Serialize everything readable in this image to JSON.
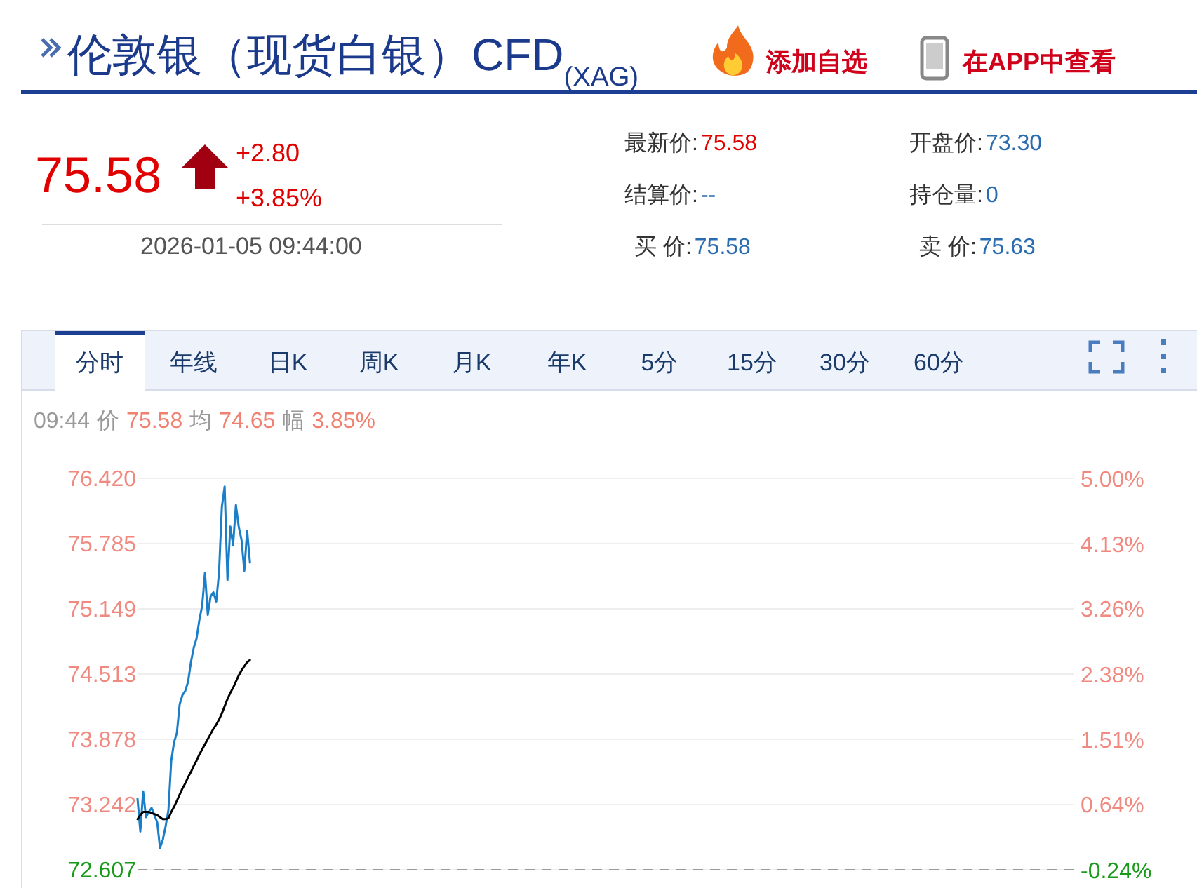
{
  "chart_data": {
    "type": "line",
    "title": "伦敦银（现货白银）CFD$_{(XAG)}$",
    "annotations": [
      "添加自选",
      "在APP中查看",
      "75.58",
      "+2.80",
      "+3.85%",
      "2026-01-05 09:44:00",
      "最新价:",
      "75.58",
      "开盘价:",
      "73.30",
      "结算价:",
      "--",
      "持仓量:",
      "0",
      "买  价:",
      "75.58",
      "卖  价:",
      "75.63",
      "分时",
      "年线",
      "日K",
      "周K",
      "月K",
      "年K",
      "5分",
      "15分",
      "30分",
      "60分",
      "09:44",
      "价",
      "75.58",
      "均",
      "74.65",
      "幅",
      "3.85%"
    ],
    "categories": [
      null,
      null,
      null,
      null,
      null,
      null,
      null,
      null,
      null,
      null,
      null,
      null,
      null,
      null,
      null,
      null,
      null,
      null,
      null,
      null,
      null,
      null,
      null,
      null,
      null,
      null,
      null,
      null,
      null,
      null,
      null,
      null,
      null,
      null,
      null,
      null,
      null,
      null,
      null,
      null,
      null,
      null,
      null,
      null,
      null,
      null,
      null,
      null,
      null,
      null,
      null,
      null,
      null,
      null,
      null,
      null,
      null,
      null,
      null,
      null,
      null,
      null,
      null,
      null,
      null,
      null,
      null,
      null,
      null,
      null,
      null,
      null,
      null,
      null,
      null,
      null,
      null,
      null,
      null,
      null,
      null,
      null,
      null,
      null,
      null,
      null,
      null,
      null,
      null,
      null,
      null,
      null,
      null,
      null,
      null,
      null,
      null,
      null,
      null,
      null,
      null,
      null,
      null,
      null,
      null,
      null,
      null,
      null,
      null,
      null,
      null,
      null,
      null,
      null,
      null,
      null,
      null,
      null,
      null,
      null,
      null,
      null,
      null,
      null,
      null,
      null,
      null,
      null,
      null,
      null,
      null,
      null,
      null,
      null,
      null,
      null,
      null,
      null,
      null,
      null,
      null,
      null,
      null,
      null,
      null,
      null,
      null,
      null,
      null,
      null,
      null,
      null,
      null,
      null,
      null,
      null,
      null,
      null,
      null,
      null,
      null,
      null,
      null,
      null,
      null,
      null,
      null,
      null,
      null,
      null,
      null,
      null,
      null,
      null,
      null,
      null,
      null,
      null,
      null,
      null,
      null,
      null,
      null,
      null,
      null,
      null,
      null,
      null,
      null,
      null,
      null,
      null,
      null,
      null,
      null,
      null,
      null,
      null,
      null,
      null,
      null,
      null,
      null,
      null,
      null,
      null,
      null,
      null,
      null,
      null,
      null,
      null,
      null,
      null,
      null,
      null,
      null,
      null,
      null,
      null,
      null,
      null,
      null,
      null,
      null,
      null,
      null,
      null,
      null,
      null,
      null,
      null,
      null,
      null,
      null,
      null,
      null,
      null,
      null,
      null,
      null,
      null,
      null,
      null,
      null,
      null,
      null,
      null,
      null,
      null,
      null,
      null,
      null,
      null,
      null,
      null,
      null,
      null,
      null,
      null,
      null,
      null,
      null,
      null,
      null,
      null,
      null,
      null,
      null,
      null,
      null,
      null,
      null,
      null,
      null,
      null,
      null,
      null,
      null,
      null,
      null,
      null,
      null,
      null,
      null,
      null,
      null,
      null,
      null,
      null,
      null,
      null,
      null,
      null,
      null,
      null,
      null,
      null,
      null,
      null,
      null,
      null,
      null,
      null,
      null,
      null,
      null,
      null,
      null,
      null,
      null,
      null,
      null,
      null,
      null,
      null,
      null,
      null,
      null,
      null,
      null,
      null,
      null,
      null,
      null,
      null,
      null,
      null,
      null,
      null,
      null,
      null,
      null,
      null
    ],
    "series": [
      {
        "color": "#1a7fc8",
        "values": [
          73.3,
          72.98,
          73.37,
          73.12,
          73.17,
          73.21,
          73.14,
          73.07,
          72.82,
          72.9,
          73.03,
          73.19,
          73.67,
          73.85,
          73.94,
          74.22,
          74.31,
          74.35,
          74.44,
          74.63,
          74.77,
          74.86,
          75.04,
          75.18,
          75.5,
          75.09,
          75.27,
          75.31,
          75.22,
          75.5,
          76.14,
          76.34,
          75.43,
          75.95,
          75.77,
          76.16,
          75.95,
          75.82,
          75.52,
          75.91,
          75.6,
          null,
          null,
          null,
          null,
          null,
          null,
          null,
          null,
          null,
          null,
          null,
          null,
          null,
          null,
          null,
          null,
          null,
          null,
          null,
          null,
          null,
          null,
          null,
          null,
          null,
          null,
          null,
          null,
          null,
          null,
          null,
          null,
          null,
          null,
          null,
          null,
          null,
          null,
          null,
          null,
          null,
          null,
          null,
          null,
          null,
          null,
          null,
          null,
          null,
          null,
          null,
          null,
          null,
          null,
          null,
          null,
          null,
          null,
          null,
          null,
          null,
          null,
          null,
          null,
          null,
          null,
          null,
          null,
          null,
          null,
          null,
          null,
          null,
          null,
          null,
          null,
          null,
          null,
          null,
          null,
          null,
          null,
          null,
          null,
          null,
          null,
          null,
          null,
          null,
          null,
          null,
          null,
          null,
          null,
          null,
          null,
          null,
          null,
          null,
          null,
          null,
          null,
          null,
          null,
          null,
          null,
          null,
          null,
          null,
          null,
          null,
          null,
          null,
          null,
          null,
          null,
          null,
          null,
          null,
          null,
          null,
          null,
          null,
          null,
          null,
          null,
          null,
          null,
          null,
          null,
          null,
          null,
          null,
          null,
          null,
          null,
          null,
          null,
          null,
          null,
          null,
          null,
          null,
          null,
          null,
          null,
          null,
          null,
          null,
          null,
          null,
          null,
          null,
          null,
          null,
          null,
          null,
          null,
          null,
          null,
          null,
          null,
          null,
          null,
          null,
          null,
          null,
          null,
          null,
          null,
          null,
          null,
          null,
          null,
          null,
          null,
          null,
          null,
          null,
          null,
          null,
          null,
          null,
          null,
          null,
          null,
          null,
          null,
          null,
          null,
          null,
          null,
          null,
          null,
          null,
          null,
          null,
          null,
          null,
          null,
          null,
          null,
          null,
          null,
          null,
          null,
          null,
          null,
          null,
          null,
          null,
          null,
          null,
          null,
          null,
          null,
          null,
          null,
          null,
          null,
          null,
          null,
          null,
          null,
          null,
          null,
          null,
          null,
          null,
          null,
          null,
          null,
          null,
          null,
          null,
          null,
          null,
          null,
          null,
          null,
          null,
          null,
          null,
          null,
          null,
          null,
          null,
          null,
          null,
          null,
          null,
          null,
          null,
          null,
          null,
          null,
          null,
          null,
          null,
          null,
          null,
          null,
          null,
          null,
          null,
          null,
          null,
          null,
          null,
          null,
          null,
          null,
          null,
          null,
          null,
          null,
          null,
          null,
          null,
          null,
          null,
          null,
          null,
          null,
          null,
          null,
          null,
          null,
          null,
          null,
          null,
          null,
          null
        ]
      },
      {
        "color": "#000000",
        "values": [
          73.1,
          73.14,
          73.17,
          73.17,
          73.17,
          73.16,
          73.15,
          73.14,
          73.12,
          73.1,
          73.1,
          73.11,
          73.17,
          73.22,
          73.28,
          73.34,
          73.4,
          73.45,
          73.51,
          73.56,
          73.62,
          73.67,
          73.73,
          73.78,
          73.83,
          73.88,
          73.93,
          73.98,
          74.02,
          74.07,
          74.13,
          74.2,
          74.27,
          74.33,
          74.38,
          74.44,
          74.5,
          74.55,
          74.59,
          74.63,
          74.65,
          null,
          null,
          null,
          null,
          null,
          null,
          null,
          null,
          null,
          null,
          null,
          null,
          null,
          null,
          null,
          null,
          null,
          null,
          null,
          null,
          null,
          null,
          null,
          null,
          null,
          null,
          null,
          null,
          null,
          null,
          null,
          null,
          null,
          null,
          null,
          null,
          null,
          null,
          null,
          null,
          null,
          null,
          null,
          null,
          null,
          null,
          null,
          null,
          null,
          null,
          null,
          null,
          null,
          null,
          null,
          null,
          null,
          null,
          null,
          null,
          null,
          null,
          null,
          null,
          null,
          null,
          null,
          null,
          null,
          null,
          null,
          null,
          null,
          null,
          null,
          null,
          null,
          null,
          null,
          null,
          null,
          null,
          null,
          null,
          null,
          null,
          null,
          null,
          null,
          null,
          null,
          null,
          null,
          null,
          null,
          null,
          null,
          null,
          null,
          null,
          null,
          null,
          null,
          null,
          null,
          null,
          null,
          null,
          null,
          null,
          null,
          null,
          null,
          null,
          null,
          null,
          null,
          null,
          null,
          null,
          null,
          null,
          null,
          null,
          null,
          null,
          null,
          null,
          null,
          null,
          null,
          null,
          null,
          null,
          null,
          null,
          null,
          null,
          null,
          null,
          null,
          null,
          null,
          null,
          null,
          null,
          null,
          null,
          null,
          null,
          null,
          null,
          null,
          null,
          null,
          null,
          null,
          null,
          null,
          null,
          null,
          null,
          null,
          null,
          null,
          null,
          null,
          null,
          null,
          null,
          null,
          null,
          null,
          null,
          null,
          null,
          null,
          null,
          null,
          null,
          null,
          null,
          null,
          null,
          null,
          null,
          null,
          null,
          null,
          null,
          null,
          null,
          null,
          null,
          null,
          null,
          null,
          null,
          null,
          null,
          null,
          null,
          null,
          null,
          null,
          null,
          null,
          null,
          null,
          null,
          null,
          null,
          null,
          null,
          null,
          null,
          null,
          null,
          null,
          null,
          null,
          null,
          null,
          null,
          null,
          null,
          null,
          null,
          null,
          null,
          null,
          null,
          null,
          null,
          null,
          null,
          null,
          null,
          null,
          null,
          null,
          null,
          null,
          null,
          null,
          null,
          null,
          null,
          null,
          null,
          null,
          null,
          null,
          null,
          null,
          null,
          null,
          null,
          null,
          null,
          null,
          null,
          null,
          null,
          null,
          null,
          null,
          null,
          null,
          null,
          null,
          null,
          null,
          null,
          null,
          null,
          null,
          null,
          null,
          null,
          null,
          null,
          null,
          null,
          null,
          null,
          null,
          null,
          null,
          null,
          null,
          null,
          null
        ]
      }
    ],
    "ylim": [
      72.607,
      76.42
    ],
    "yticks": [
      72.607,
      73.242,
      73.878,
      74.513,
      75.149,
      75.785,
      {
        "value": 76.42,
        "label": "76.420"
      }
    ],
    "y2lim": [
      -0.24,
      5
    ],
    "y2ticks": [
      {
        "value": -0.24,
        "label": "-0.24%"
      },
      {
        "value": 0.64,
        "label": "0.64%"
      },
      {
        "value": 1.51,
        "label": "1.51%"
      },
      {
        "value": 2.38,
        "label": "2.38%"
      },
      {
        "value": 3.26,
        "label": "3.26%"
      },
      {
        "value": 4.13,
        "label": "4.13%"
      },
      {
        "value": 5,
        "label": "5.00%"
      }
    ],
    "ref_lines": [
      {
        "axis": "y",
        "value": 72.607,
        "color": "#999999",
        "line_style": "dashed"
      }
    ],
    "grid": "y",
    "marker": "none",
    "line_style": "solid",
    "tick_labels": "y"
  }
}
